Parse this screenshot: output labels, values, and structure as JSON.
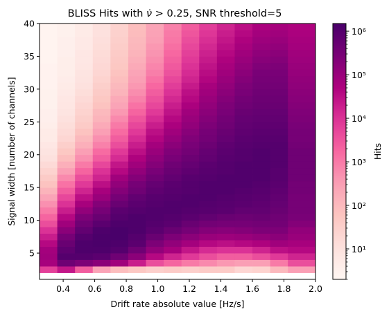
{
  "chart_data": {
    "type": "heatmap",
    "title": {
      "prefix": "BLISS Hits with ",
      "symbol": "ν̇",
      "suffix": " > 0.25, SNR threshold=5"
    },
    "xlabel": "Drift rate absolute value [Hz/s]",
    "ylabel": "Signal width [number of channels]",
    "colorbar_label": "Hits",
    "color_scale": "log",
    "colormap": "RdPu",
    "colormap_stops": [
      "#fff7f3",
      "#fde0dd",
      "#fcc5c0",
      "#fa9fb5",
      "#f768a1",
      "#dd3497",
      "#ae017e",
      "#7a0177",
      "#49006a"
    ],
    "colorbar_range": [
      2,
      1500000
    ],
    "colorbar_ticks": [
      {
        "value": 10,
        "label": "10¹"
      },
      {
        "value": 100,
        "label": "10²"
      },
      {
        "value": 1000,
        "label": "10³"
      },
      {
        "value": 10000,
        "label": "10⁴"
      },
      {
        "value": 100000,
        "label": "10⁵"
      },
      {
        "value": 1000000,
        "label": "10⁶"
      }
    ],
    "xlim": [
      0.25,
      2.0
    ],
    "ylim": [
      1,
      40
    ],
    "x_ticks": [
      "0.4",
      "0.6",
      "0.8",
      "1.0",
      "1.2",
      "1.4",
      "1.6",
      "1.8",
      "2.0"
    ],
    "y_ticks": [
      "5",
      "10",
      "15",
      "20",
      "25",
      "30",
      "35",
      "40"
    ],
    "x_bins": [
      0.25,
      0.3625,
      0.475,
      0.5875,
      0.7,
      0.8125,
      0.925,
      1.0375,
      1.15,
      1.2625,
      1.375,
      1.4875,
      1.6,
      1.7125,
      1.825,
      2.0
    ],
    "y_bin_range": [
      2,
      40
    ],
    "y_bin_count": 38,
    "log10_hits": [
      [
        3.8,
        4.4,
        3.4,
        2.4,
        1.9,
        1.7,
        1.5,
        1.6,
        1.5,
        1.6,
        1.6,
        1.3,
        1.4,
        2.0,
        2.5
      ],
      [
        4.8,
        5.6,
        5.4,
        5.2,
        4.9,
        4.3,
        3.6,
        3.3,
        3.0,
        2.8,
        2.6,
        2.5,
        2.5,
        3.0,
        3.6
      ],
      [
        4.9,
        6.0,
        6.0,
        5.9,
        5.6,
        5.2,
        4.6,
        4.2,
        3.9,
        3.6,
        3.4,
        3.4,
        3.6,
        3.9,
        4.2
      ],
      [
        4.85,
        5.85,
        6.1,
        6.1,
        6.0,
        5.6,
        5.1,
        4.8,
        4.4,
        4.1,
        4.0,
        4.0,
        4.2,
        4.5,
        4.6
      ],
      [
        4.6,
        5.7,
        6.1,
        6.15,
        6.1,
        5.9,
        5.4,
        5.1,
        4.85,
        4.6,
        4.5,
        4.6,
        4.7,
        4.9,
        4.8
      ],
      [
        4.3,
        5.5,
        6.0,
        6.15,
        6.2,
        6.0,
        5.7,
        5.4,
        5.2,
        5.0,
        4.95,
        5.0,
        5.1,
        5.2,
        5.0
      ],
      [
        4.0,
        5.2,
        5.8,
        6.1,
        6.2,
        6.1,
        5.9,
        5.7,
        5.5,
        5.3,
        5.25,
        5.3,
        5.4,
        5.4,
        5.1
      ],
      [
        3.6,
        4.9,
        5.6,
        5.9,
        6.1,
        6.1,
        6.0,
        5.9,
        5.7,
        5.55,
        5.5,
        5.5,
        5.55,
        5.55,
        5.3
      ],
      [
        3.3,
        4.6,
        5.4,
        5.7,
        6.0,
        6.1,
        6.05,
        6.0,
        5.9,
        5.8,
        5.7,
        5.65,
        5.7,
        5.6,
        5.45
      ],
      [
        3.0,
        4.3,
        5.1,
        5.5,
        5.9,
        6.0,
        6.05,
        6.05,
        6.0,
        5.95,
        5.9,
        5.8,
        5.8,
        5.7,
        5.5
      ],
      [
        2.7,
        4.0,
        4.8,
        5.3,
        5.7,
        5.9,
        6.0,
        6.05,
        6.05,
        6.0,
        5.95,
        5.9,
        5.85,
        5.75,
        5.5
      ],
      [
        2.4,
        3.7,
        4.5,
        5.0,
        5.5,
        5.8,
        5.95,
        6.0,
        6.05,
        6.05,
        6.0,
        5.95,
        5.9,
        5.8,
        5.5
      ],
      [
        2.1,
        3.4,
        4.2,
        4.8,
        5.3,
        5.6,
        5.85,
        5.95,
        6.0,
        6.05,
        6.05,
        6.0,
        5.95,
        5.85,
        5.55
      ],
      [
        1.8,
        3.1,
        3.9,
        4.5,
        5.1,
        5.5,
        5.75,
        5.9,
        6.0,
        6.05,
        6.05,
        6.05,
        6.0,
        5.9,
        5.55
      ],
      [
        1.6,
        2.8,
        3.6,
        4.2,
        4.9,
        5.3,
        5.6,
        5.8,
        5.95,
        6.0,
        6.05,
        6.05,
        6.05,
        5.95,
        5.6
      ],
      [
        1.4,
        2.5,
        3.3,
        4.0,
        4.6,
        5.1,
        5.45,
        5.7,
        5.85,
        5.95,
        6.0,
        6.05,
        6.05,
        5.95,
        5.6
      ],
      [
        1.2,
        2.2,
        3.0,
        3.7,
        4.4,
        4.9,
        5.3,
        5.6,
        5.75,
        5.9,
        6.0,
        6.05,
        6.05,
        6.0,
        5.6
      ],
      [
        1.0,
        1.9,
        2.7,
        3.4,
        4.1,
        4.7,
        5.15,
        5.45,
        5.65,
        5.8,
        5.95,
        6.0,
        6.05,
        6.0,
        5.6
      ],
      [
        0.9,
        1.7,
        2.5,
        3.2,
        3.9,
        4.5,
        5.0,
        5.35,
        5.55,
        5.75,
        5.9,
        6.0,
        6.05,
        6.0,
        5.6
      ],
      [
        0.8,
        1.5,
        2.2,
        2.9,
        3.6,
        4.3,
        4.85,
        5.2,
        5.45,
        5.65,
        5.85,
        5.95,
        6.0,
        6.0,
        5.55
      ],
      [
        0.7,
        1.3,
        2.0,
        2.7,
        3.4,
        4.1,
        4.65,
        5.05,
        5.35,
        5.55,
        5.75,
        5.9,
        5.95,
        5.95,
        5.5
      ],
      [
        0.7,
        1.2,
        1.8,
        2.5,
        3.2,
        3.9,
        4.5,
        4.9,
        5.25,
        5.5,
        5.7,
        5.85,
        5.9,
        5.9,
        5.5
      ],
      [
        0.6,
        1.1,
        1.6,
        2.3,
        3.0,
        3.7,
        4.3,
        4.75,
        5.1,
        5.4,
        5.6,
        5.8,
        5.85,
        5.85,
        5.45
      ],
      [
        0.55,
        1.0,
        1.5,
        2.1,
        2.8,
        3.5,
        4.1,
        4.6,
        5.0,
        5.3,
        5.55,
        5.75,
        5.8,
        5.8,
        5.4
      ],
      [
        0.55,
        0.9,
        1.4,
        2.0,
        2.6,
        3.3,
        3.9,
        4.45,
        4.9,
        5.2,
        5.45,
        5.7,
        5.75,
        5.75,
        5.35
      ],
      [
        0.5,
        0.85,
        1.3,
        1.8,
        2.4,
        3.1,
        3.7,
        4.3,
        4.75,
        5.1,
        5.4,
        5.6,
        5.7,
        5.7,
        5.3
      ],
      [
        0.5,
        0.8,
        1.2,
        1.7,
        2.3,
        2.9,
        3.55,
        4.15,
        4.6,
        5.0,
        5.3,
        5.55,
        5.65,
        5.65,
        5.25
      ],
      [
        0.5,
        0.75,
        1.1,
        1.6,
        2.1,
        2.75,
        3.4,
        4.0,
        4.5,
        4.9,
        5.2,
        5.45,
        5.6,
        5.6,
        5.2
      ],
      [
        0.45,
        0.7,
        1.0,
        1.5,
        2.0,
        2.6,
        3.25,
        3.85,
        4.35,
        4.8,
        5.1,
        5.4,
        5.55,
        5.55,
        5.15
      ],
      [
        0.45,
        0.65,
        0.95,
        1.4,
        1.9,
        2.5,
        3.1,
        3.7,
        4.2,
        4.65,
        5.0,
        5.3,
        5.5,
        5.5,
        5.1
      ],
      [
        0.45,
        0.6,
        0.9,
        1.3,
        1.8,
        2.4,
        2.95,
        3.55,
        4.1,
        4.55,
        4.9,
        5.2,
        5.45,
        5.45,
        5.05
      ],
      [
        0.45,
        0.6,
        0.85,
        1.25,
        1.7,
        2.3,
        2.85,
        3.45,
        4.0,
        4.45,
        4.8,
        5.1,
        5.35,
        5.4,
        5.0
      ],
      [
        0.4,
        0.6,
        0.8,
        1.2,
        1.65,
        2.2,
        2.75,
        3.35,
        3.9,
        4.35,
        4.7,
        5.0,
        5.25,
        5.3,
        4.95
      ],
      [
        0.4,
        0.55,
        0.8,
        1.15,
        1.6,
        2.1,
        2.65,
        3.25,
        3.8,
        4.25,
        4.6,
        4.9,
        5.15,
        5.2,
        4.9
      ],
      [
        0.4,
        0.55,
        0.75,
        1.1,
        1.55,
        2.05,
        2.6,
        3.15,
        3.7,
        4.15,
        4.5,
        4.8,
        5.05,
        5.1,
        4.85
      ],
      [
        0.4,
        0.55,
        0.75,
        1.05,
        1.5,
        2.0,
        2.5,
        3.05,
        3.6,
        4.05,
        4.4,
        4.7,
        4.95,
        5.0,
        4.8
      ],
      [
        0.4,
        0.5,
        0.7,
        1.0,
        1.45,
        1.95,
        2.45,
        3.0,
        3.5,
        3.95,
        4.3,
        4.6,
        4.85,
        4.9,
        4.75
      ],
      [
        0.4,
        0.5,
        0.7,
        1.0,
        1.4,
        1.9,
        2.4,
        2.9,
        3.4,
        3.85,
        4.2,
        4.5,
        4.75,
        4.8,
        4.7
      ]
    ]
  }
}
